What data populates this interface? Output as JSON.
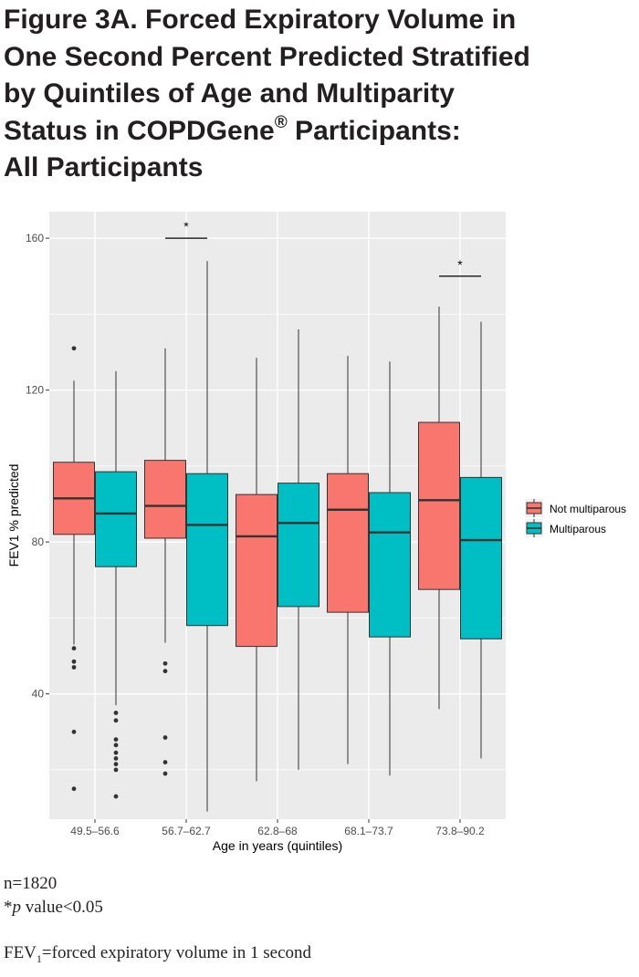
{
  "figure": {
    "title_lines": [
      "Figure 3A. Forced Expiratory Volume in",
      "One Second Percent Predicted Stratified",
      "by Quintiles of Age and Multiparity",
      "Status in COPDGene",
      "All Participants"
    ],
    "title_registered_mark": "®",
    "title_line4_suffix": " Participants:"
  },
  "notes": {
    "n": "n=1820",
    "p_prefix": "*",
    "p_italic": "p",
    "p_suffix": " value<0.05",
    "fev_prefix": "FEV",
    "fev_subscript": "1",
    "fev_suffix": "=forced expiratory volume in 1 second"
  },
  "colors": {
    "panel_bg": "#ebebeb",
    "grid": "#ffffff",
    "not_multiparous": "#f8766d",
    "multiparous": "#00bfc4",
    "outline": "#333333",
    "axis_text": "#4d4d4d"
  },
  "chart_data": {
    "type": "box",
    "title": "",
    "xlabel": "Age in years (quintiles)",
    "ylabel": "FEV1 % predicted",
    "ylim": [
      7,
      167
    ],
    "yticks": [
      40,
      80,
      120,
      160
    ],
    "grid": true,
    "legend_position": "right",
    "categories": [
      "49.5–56.6",
      "56.7–62.7",
      "62.8–68",
      "68.1–73.7",
      "73.8–90.2"
    ],
    "series": [
      {
        "name": "Not multiparous",
        "color": "#f8766d",
        "boxes": [
          {
            "whisker_low": 53,
            "q1": 82,
            "median": 91.5,
            "q3": 101,
            "whisker_high": 122.5,
            "outliers": [
              131,
              52,
              48.5,
              47,
              30,
              15
            ]
          },
          {
            "whisker_low": 53.5,
            "q1": 81,
            "median": 89.5,
            "q3": 101.5,
            "whisker_high": 131,
            "outliers": [
              48,
              46,
              28.5,
              22,
              19
            ]
          },
          {
            "whisker_low": 17,
            "q1": 52.5,
            "median": 81.5,
            "q3": 92.5,
            "whisker_high": 128.5,
            "outliers": []
          },
          {
            "whisker_low": 21.5,
            "q1": 61.5,
            "median": 88.5,
            "q3": 98,
            "whisker_high": 129,
            "outliers": []
          },
          {
            "whisker_low": 36,
            "q1": 67.5,
            "median": 91,
            "q3": 111.5,
            "whisker_high": 142,
            "outliers": []
          }
        ]
      },
      {
        "name": "Multiparous",
        "color": "#00bfc4",
        "boxes": [
          {
            "whisker_low": 37,
            "q1": 73.5,
            "median": 87.5,
            "q3": 98.5,
            "whisker_high": 125,
            "outliers": [
              35,
              33,
              28,
              26.5,
              24.5,
              23,
              21.5,
              20,
              13
            ]
          },
          {
            "whisker_low": 9,
            "q1": 58,
            "median": 84.5,
            "q3": 98,
            "whisker_high": 154,
            "outliers": []
          },
          {
            "whisker_low": 20,
            "q1": 63,
            "median": 85,
            "q3": 95.5,
            "whisker_high": 136,
            "outliers": []
          },
          {
            "whisker_low": 18.5,
            "q1": 55,
            "median": 82.5,
            "q3": 93,
            "whisker_high": 127.5,
            "outliers": []
          },
          {
            "whisker_low": 23,
            "q1": 54.5,
            "median": 80.5,
            "q3": 97,
            "whisker_high": 138,
            "outliers": []
          }
        ]
      }
    ],
    "annotations": [
      {
        "category_index": 1,
        "text": "*",
        "bracket_y": 160
      },
      {
        "category_index": 4,
        "text": "*",
        "bracket_y": 150
      }
    ]
  }
}
